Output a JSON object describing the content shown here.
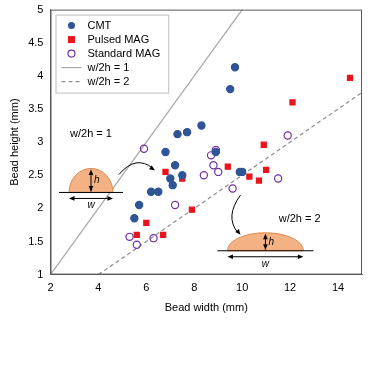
{
  "chart_data": {
    "type": "scatter",
    "x_label": "Bead width (mm)",
    "y_label": "Bead height (mm)",
    "xlim": [
      2,
      15
    ],
    "ylim": [
      1,
      5
    ],
    "xticks": [
      2,
      4,
      6,
      8,
      10,
      12,
      14
    ],
    "yticks": [
      1,
      1.5,
      2,
      2.5,
      3,
      3.5,
      4,
      4.5,
      5
    ],
    "grid": false,
    "legend": "upper left",
    "series": [
      {
        "name": "CMT",
        "type": "scatter",
        "color": "#2f5597",
        "marker": "circle",
        "line_style": "none",
        "x": [
          9.7,
          9.5,
          8.3,
          7.7,
          7.3,
          6.8,
          7.2,
          7.5,
          7.0,
          7.1,
          8.9,
          6.2,
          6.5,
          5.7,
          5.5,
          9.9,
          10.0
        ],
        "values": [
          4.13,
          3.8,
          3.25,
          3.15,
          3.12,
          2.85,
          2.65,
          2.5,
          2.45,
          2.35,
          2.85,
          2.25,
          2.25,
          2.05,
          1.85,
          2.55,
          2.55
        ]
      },
      {
        "name": "Pulsed MAG",
        "type": "scatter",
        "color": "#e8141b",
        "marker": "square",
        "line_style": "none",
        "x": [
          14.5,
          12.1,
          10.9,
          9.4,
          10.3,
          10.7,
          10.0,
          11.0,
          6.8,
          7.5,
          7.9,
          6.7,
          5.6,
          6.0
        ],
        "values": [
          3.97,
          3.6,
          2.96,
          2.63,
          2.48,
          2.42,
          2.55,
          2.58,
          2.55,
          2.45,
          1.98,
          1.6,
          1.6,
          1.78
        ]
      },
      {
        "name": "Standard MAG",
        "type": "scatter",
        "color": "#7030a0",
        "marker": "open_circle",
        "line_style": "none",
        "x": [
          5.9,
          11.9,
          8.9,
          8.8,
          8.7,
          9.0,
          9.6,
          7.2,
          6.3,
          5.6,
          5.3,
          11.5,
          8.4
        ],
        "values": [
          2.9,
          3.1,
          2.88,
          2.65,
          2.8,
          2.55,
          2.3,
          2.05,
          1.55,
          1.45,
          1.57,
          2.45,
          2.5
        ]
      },
      {
        "name": "w/2h = 1",
        "type": "line",
        "color": "#a6a6a6",
        "marker": "none",
        "line_style": "solid",
        "x": [
          2,
          10
        ],
        "values": [
          1,
          5
        ]
      },
      {
        "name": "w/2h = 2",
        "type": "line",
        "color": "#8c8c8c",
        "marker": "none",
        "line_style": "dashed",
        "x": [
          4,
          15
        ],
        "values": [
          1,
          3.75
        ]
      }
    ],
    "annotations": [
      {
        "label": "w/2h = 1",
        "h_label": "h",
        "w_label": "w"
      },
      {
        "label": "w/2h = 2",
        "h_label": "h",
        "w_label": "w"
      }
    ]
  }
}
